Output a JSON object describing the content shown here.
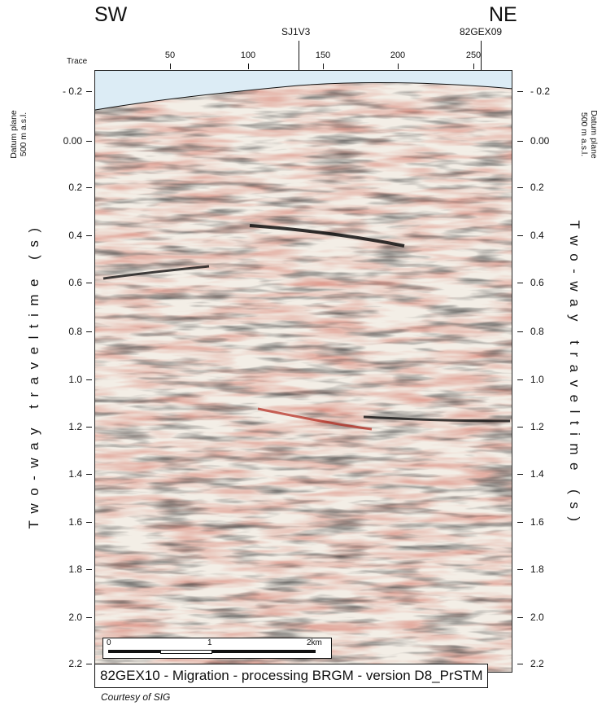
{
  "profile": {
    "sw_label": "SW",
    "ne_label": "NE",
    "wells": [
      "SJ1V3",
      "82GEX09"
    ],
    "trace_title": "Trace",
    "trace_ticks": [
      "50",
      "100",
      "150",
      "200",
      "250"
    ],
    "left_time_ticks": [
      "- 0.2",
      "0.00",
      "0.2",
      "0.4",
      "0.6",
      "0.8",
      "1.0",
      "1.2",
      "1.4",
      "1.6",
      "1.8",
      "2.0",
      "2.2"
    ],
    "right_time_ticks": [
      "- 0.2",
      "0.00",
      "0.2",
      "0.4",
      "0.6",
      "0.8",
      "1.0",
      "1.2",
      "1.4",
      "1.6",
      "1.8",
      "2.0",
      "2.2"
    ],
    "datum_line1": "Datum plane",
    "datum_line2": "500 m a.s.l.",
    "y_axis_title": "Two-way traveltime (s)",
    "scale_labels": [
      "0",
      "1",
      "2km"
    ],
    "caption": "82GEX10 - Migration - processing BRGM - version D8_PrSTM",
    "courtesy": "Courtesy of SIG"
  },
  "colors": {
    "trough": "#111111",
    "peak": "#b22418",
    "amber": "#d8aa7a",
    "background": "#f3eee6",
    "sky": "#dcecf5"
  }
}
